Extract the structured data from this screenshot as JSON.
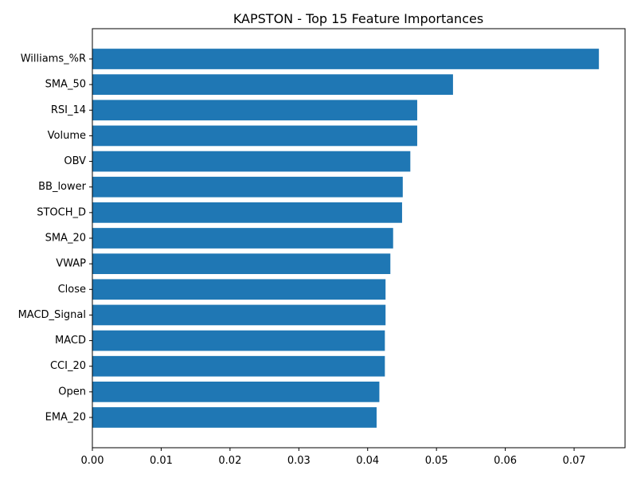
{
  "chart_data": {
    "type": "bar",
    "orientation": "horizontal",
    "title": "KAPSTON - Top 15 Feature Importances",
    "xlabel": "",
    "ylabel": "",
    "categories": [
      "Williams_%R",
      "SMA_50",
      "RSI_14",
      "Volume",
      "OBV",
      "BB_lower",
      "STOCH_D",
      "SMA_20",
      "VWAP",
      "Close",
      "MACD_Signal",
      "MACD",
      "CCI_20",
      "Open",
      "EMA_20"
    ],
    "values": [
      0.0736,
      0.0524,
      0.0472,
      0.0472,
      0.0462,
      0.0451,
      0.045,
      0.0437,
      0.0433,
      0.0426,
      0.0426,
      0.0425,
      0.0425,
      0.0417,
      0.0413
    ],
    "xlim": [
      0.0,
      0.0774
    ],
    "xticks": [
      "0.00",
      "0.01",
      "0.02",
      "0.03",
      "0.04",
      "0.05",
      "0.06",
      "0.07"
    ],
    "bar_color": "#1f77b4",
    "grid": false,
    "legend": "none"
  }
}
